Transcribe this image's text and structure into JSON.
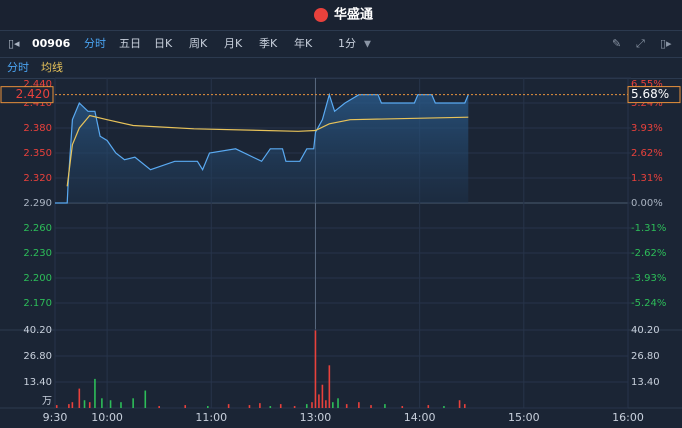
{
  "header": {
    "title": "华盛通"
  },
  "toolbar": {
    "code": "00906",
    "tabs": [
      "分时",
      "五日",
      "日K",
      "周K",
      "月K",
      "季K",
      "年K"
    ],
    "interval": "1分"
  },
  "subtabs": {
    "active": "分时",
    "overlay": "均线"
  },
  "chart_data": {
    "type": "line",
    "xlim": [
      0,
      330
    ],
    "xticks": [
      {
        "value": 0,
        "label": "9:30"
      },
      {
        "value": 30,
        "label": "10:00"
      },
      {
        "value": 90,
        "label": "11:00"
      },
      {
        "value": 150,
        "label": "13:00"
      },
      {
        "value": 210,
        "label": "14:00"
      },
      {
        "value": 270,
        "label": "15:00"
      },
      {
        "value": 330,
        "label": "16:00"
      }
    ],
    "ylim": [
      2.17,
      2.44
    ],
    "yticks": [
      {
        "value": 2.44,
        "label": "2.440"
      },
      {
        "value": 2.41,
        "label": "2.410"
      },
      {
        "value": 2.38,
        "label": "2.380"
      },
      {
        "value": 2.35,
        "label": "2.350"
      },
      {
        "value": 2.32,
        "label": "2.320"
      },
      {
        "value": 2.29,
        "label": "2.290"
      },
      {
        "value": 2.26,
        "label": "2.260"
      },
      {
        "value": 2.23,
        "label": "2.230"
      },
      {
        "value": 2.2,
        "label": "2.200"
      },
      {
        "value": 2.17,
        "label": "2.170"
      }
    ],
    "y2lim": [
      -5.24,
      6.55
    ],
    "y2ticks": [
      {
        "value": 6.55,
        "label": "6.55%"
      },
      {
        "value": 5.24,
        "label": "5.24%"
      },
      {
        "value": 3.93,
        "label": "3.93%"
      },
      {
        "value": 2.62,
        "label": "2.62%"
      },
      {
        "value": 1.31,
        "label": "1.31%"
      },
      {
        "value": 0,
        "label": "0.00%"
      },
      {
        "value": -1.31,
        "label": "-1.31%"
      },
      {
        "value": -2.62,
        "label": "-2.62%"
      },
      {
        "value": -3.93,
        "label": "-3.93%"
      },
      {
        "value": -5.24,
        "label": "-5.24%"
      }
    ],
    "last_price": {
      "value": 2.42,
      "label": "2.420"
    },
    "last_pct": {
      "value": 5.68,
      "label": "5.68%"
    },
    "series": [
      {
        "color": "#5aaaf2",
        "x": [
          0,
          7,
          7.5,
          10,
          14,
          19,
          23,
          26,
          30,
          35,
          40,
          46,
          55,
          69,
          82,
          85,
          89,
          104,
          119,
          124,
          131,
          133,
          141,
          145,
          149,
          150,
          154,
          158,
          161,
          167,
          175,
          186,
          188,
          207,
          209,
          217,
          219,
          236,
          238
        ],
        "values": [
          2.29,
          2.29,
          2.31,
          2.39,
          2.41,
          2.4,
          2.4,
          2.37,
          2.365,
          2.35,
          2.342,
          2.345,
          2.33,
          2.34,
          2.34,
          2.33,
          2.35,
          2.355,
          2.34,
          2.355,
          2.355,
          2.34,
          2.34,
          2.355,
          2.355,
          2.375,
          2.39,
          2.42,
          2.4,
          2.41,
          2.42,
          2.42,
          2.41,
          2.41,
          2.42,
          2.42,
          2.41,
          2.41,
          2.42
        ]
      },
      {
        "color": "#e8c35a",
        "x": [
          7,
          10,
          14,
          20,
          30,
          45,
          80,
          140,
          150,
          158,
          170,
          238
        ],
        "values": [
          2.31,
          2.36,
          2.38,
          2.395,
          2.39,
          2.383,
          2.379,
          2.376,
          2.377,
          2.385,
          2.39,
          2.393
        ]
      }
    ],
    "volume": {
      "ylim": [
        0,
        40.2
      ],
      "yticks": [
        {
          "value": 40.2,
          "label": "40.20"
        },
        {
          "value": 26.8,
          "label": "26.80"
        },
        {
          "value": 13.4,
          "label": "13.40"
        },
        {
          "value": 0,
          "label": "万"
        }
      ],
      "x": [
        1,
        8,
        10,
        14,
        17,
        20,
        23,
        27,
        32,
        38,
        45,
        52,
        60,
        75,
        88,
        100,
        112,
        118,
        124,
        130,
        138,
        145,
        148,
        150,
        152,
        154,
        156,
        158,
        160,
        163,
        168,
        175,
        182,
        190,
        200,
        215,
        224,
        233,
        236
      ],
      "values": [
        1.5,
        2,
        3,
        10,
        4,
        3,
        15,
        5,
        4,
        3,
        5,
        9,
        1,
        1.5,
        1,
        2,
        1.5,
        2.5,
        1,
        2,
        1,
        2,
        3,
        40,
        7,
        12,
        4,
        22,
        3,
        5,
        2,
        3,
        1.5,
        2,
        1,
        1.5,
        1,
        4,
        2
      ],
      "colors": [
        "#e8413c",
        "#e8413c",
        "#e8413c",
        "#e8413c",
        "#2dbd59",
        "#e8413c",
        "#2dbd59",
        "#2dbd59",
        "#2dbd59",
        "#2dbd59",
        "#2dbd59",
        "#2dbd59",
        "#e8413c",
        "#e8413c",
        "#2dbd59",
        "#e8413c",
        "#e8413c",
        "#e8413c",
        "#2dbd59",
        "#e8413c",
        "#e8413c",
        "#2dbd59",
        "#e8413c",
        "#e8413c",
        "#e8413c",
        "#e8413c",
        "#e8413c",
        "#e8413c",
        "#2dbd59",
        "#2dbd59",
        "#e8413c",
        "#e8413c",
        "#e8413c",
        "#2dbd59",
        "#e8413c",
        "#e8413c",
        "#2dbd59",
        "#e8413c",
        "#e8413c"
      ]
    }
  }
}
